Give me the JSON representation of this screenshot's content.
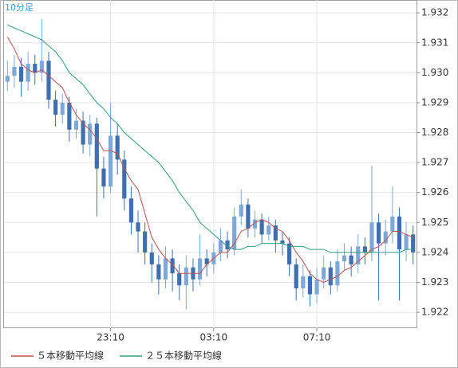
{
  "chart_data": {
    "type": "candlestick",
    "timeframe": "10分足",
    "categories": [
      null,
      null,
      null,
      null,
      null,
      null,
      null,
      null,
      null,
      null,
      null,
      null,
      null,
      null,
      null,
      "23:10",
      null,
      null,
      null,
      null,
      null,
      null,
      null,
      null,
      null,
      null,
      null,
      null,
      null,
      null,
      "03:10",
      null,
      null,
      null,
      null,
      null,
      null,
      null,
      null,
      null,
      null,
      null,
      null,
      null,
      null,
      "07:10",
      null,
      null,
      null,
      null,
      null,
      null,
      null,
      null,
      null,
      null,
      null,
      null,
      null,
      null
    ],
    "open": [
      1.9297,
      1.9299,
      1.9302,
      1.9297,
      1.9303,
      1.93,
      1.9304,
      1.9291,
      1.9286,
      1.929,
      1.9281,
      1.9284,
      1.9276,
      1.9283,
      1.9268,
      1.9262,
      1.9279,
      1.9271,
      1.9258,
      1.925,
      1.9247,
      1.924,
      1.9236,
      1.9231,
      1.9238,
      1.9233,
      1.9229,
      1.9235,
      1.9231,
      1.9238,
      1.9236,
      1.924,
      1.9244,
      1.9241,
      1.9252,
      1.9256,
      1.9248,
      1.9251,
      1.9246,
      1.9249,
      1.9244,
      1.9243,
      1.9236,
      1.9228,
      1.9232,
      1.9226,
      1.9231,
      1.9235,
      1.9229,
      1.9237,
      1.9239,
      1.9236,
      1.9242,
      1.924,
      1.925,
      1.9243,
      1.9247,
      1.9252,
      1.9241,
      1.9246
    ],
    "high": [
      1.9304,
      1.9306,
      1.9305,
      1.9307,
      1.9306,
      1.9318,
      1.9307,
      1.9294,
      1.9293,
      1.9292,
      1.9288,
      1.9287,
      1.9286,
      1.9285,
      1.9272,
      1.929,
      1.9283,
      1.9274,
      1.9262,
      1.9254,
      1.925,
      1.9243,
      1.9239,
      1.9242,
      1.9241,
      1.9236,
      1.9239,
      1.9238,
      1.9246,
      1.9241,
      1.9243,
      1.9248,
      1.9247,
      1.9255,
      1.9261,
      1.9258,
      1.9254,
      1.9253,
      1.9252,
      1.9251,
      1.9247,
      1.9245,
      1.9238,
      1.9236,
      1.9234,
      1.9235,
      1.9239,
      1.9237,
      1.9241,
      1.9243,
      1.9242,
      1.9246,
      1.9245,
      1.9269,
      1.9253,
      1.9251,
      1.9262,
      1.9255,
      1.925,
      1.9249
    ],
    "low": [
      1.9294,
      1.9295,
      1.9292,
      1.9294,
      1.9296,
      1.9297,
      1.9288,
      1.9282,
      1.9283,
      1.9277,
      1.9278,
      1.9273,
      1.9272,
      1.9252,
      1.9258,
      1.926,
      1.9266,
      1.9254,
      1.9246,
      1.924,
      1.9236,
      1.923,
      1.9226,
      1.9228,
      1.9227,
      1.9224,
      1.9221,
      1.9227,
      1.9229,
      1.9232,
      1.9233,
      1.9237,
      1.9238,
      1.9239,
      1.9249,
      1.9245,
      1.9245,
      1.9243,
      1.9244,
      1.924,
      1.9239,
      1.9232,
      1.9224,
      1.9225,
      1.9222,
      1.9223,
      1.9228,
      1.9226,
      1.9227,
      1.9234,
      1.9232,
      1.9233,
      1.9236,
      1.9237,
      1.9224,
      1.9239,
      1.9243,
      1.9224,
      1.9237,
      1.9236
    ],
    "close": [
      1.9299,
      1.9302,
      1.9297,
      1.9303,
      1.93,
      1.9304,
      1.9291,
      1.9286,
      1.929,
      1.9281,
      1.9284,
      1.9276,
      1.9283,
      1.9268,
      1.9262,
      1.9279,
      1.9271,
      1.9258,
      1.925,
      1.9247,
      1.924,
      1.9236,
      1.9231,
      1.9238,
      1.9233,
      1.9229,
      1.9235,
      1.9231,
      1.9238,
      1.9236,
      1.924,
      1.9244,
      1.9241,
      1.9252,
      1.9256,
      1.9248,
      1.9251,
      1.9246,
      1.9249,
      1.9244,
      1.9243,
      1.9236,
      1.9228,
      1.9232,
      1.9226,
      1.9231,
      1.9235,
      1.9229,
      1.9237,
      1.9239,
      1.9236,
      1.9242,
      1.924,
      1.925,
      1.9243,
      1.9247,
      1.9252,
      1.9241,
      1.9246,
      1.924
    ],
    "up_color": "#7fa8d8",
    "down_color": "#3f6fae",
    "series": [
      {
        "name": "５本移動平均線",
        "color": "#c0504d",
        "values": [
          1.9312,
          1.9308,
          1.9303,
          1.9301,
          1.93,
          1.9301,
          1.9299,
          1.9297,
          1.9295,
          1.929,
          1.9286,
          1.9283,
          1.9281,
          1.9278,
          1.9274,
          1.9274,
          1.9273,
          1.9268,
          1.9264,
          1.9261,
          1.9253,
          1.9245,
          1.9241,
          1.9238,
          1.9236,
          1.9233,
          1.9233,
          1.9233,
          1.9233,
          1.9236,
          1.9238,
          1.924,
          1.924,
          1.9243,
          1.9247,
          1.9248,
          1.925,
          1.9251,
          1.925,
          1.9248,
          1.9247,
          1.9244,
          1.924,
          1.9237,
          1.9233,
          1.9231,
          1.923,
          1.9231,
          1.9232,
          1.9234,
          1.9235,
          1.9237,
          1.9239,
          1.9241,
          1.9242,
          1.9244,
          1.9247,
          1.9247,
          1.9246,
          1.9245
        ]
      },
      {
        "name": "２５本移動平均線",
        "color": "#2e9e7e",
        "values": [
          1.9316,
          1.9315,
          1.9314,
          1.9313,
          1.9312,
          1.9311,
          1.9309,
          1.9307,
          1.9304,
          1.93,
          1.9298,
          1.9296,
          1.9293,
          1.929,
          1.9288,
          1.9285,
          1.9283,
          1.928,
          1.9278,
          1.9276,
          1.9274,
          1.9272,
          1.927,
          1.9267,
          1.9264,
          1.926,
          1.9257,
          1.9254,
          1.925,
          1.9248,
          1.9246,
          1.9244,
          1.9242,
          1.9241,
          1.9241,
          1.9242,
          1.9242,
          1.9243,
          1.9243,
          1.9243,
          1.9243,
          1.9242,
          1.9242,
          1.9242,
          1.9241,
          1.9241,
          1.9241,
          1.924,
          1.924,
          1.924,
          1.924,
          1.924,
          1.924,
          1.924,
          1.924,
          1.924,
          1.924,
          1.924,
          1.9241,
          1.9241
        ]
      }
    ],
    "ylim": [
      1.92147,
      1.93243
    ],
    "yticks": [
      1.922,
      1.923,
      1.924,
      1.925,
      1.926,
      1.927,
      1.928,
      1.929,
      {
        "value": 1.93,
        "label": "1.930"
      },
      1.931,
      1.932
    ],
    "grid": true
  }
}
